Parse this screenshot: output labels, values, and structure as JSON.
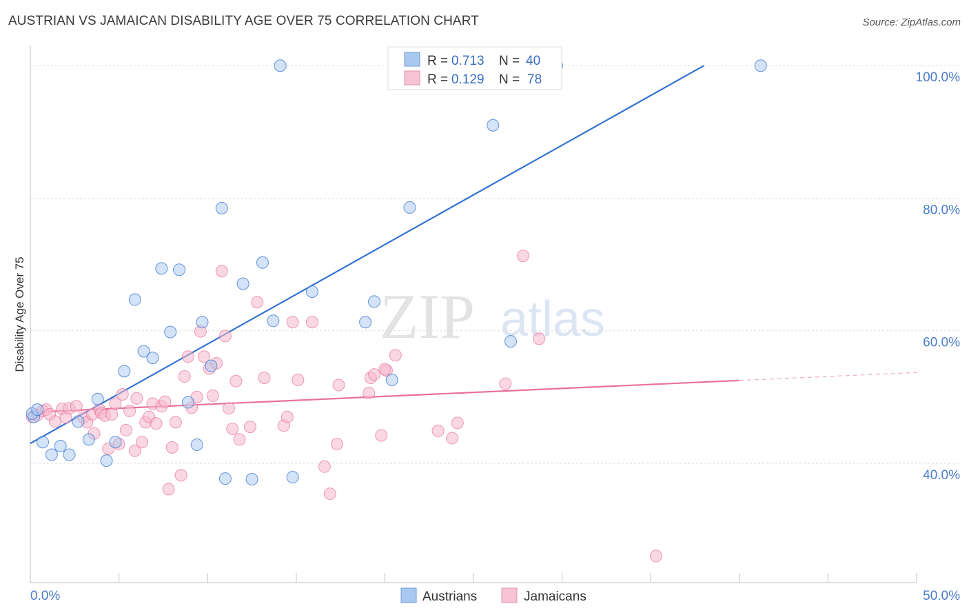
{
  "title": "AUSTRIAN VS JAMAICAN DISABILITY AGE OVER 75 CORRELATION CHART",
  "source": "Source: ZipAtlas.com",
  "watermark": {
    "zip": "ZIP",
    "atlas": "atlas"
  },
  "legend_stats": [
    {
      "r_label": "R =",
      "r_value": "0.713",
      "n_label": "N =",
      "n_value": "40"
    },
    {
      "r_label": "R =",
      "r_value": "0.129",
      "n_label": "N =",
      "n_value": "78"
    }
  ],
  "chart_data": {
    "type": "scatter",
    "title": "AUSTRIAN VS JAMAICAN DISABILITY AGE OVER 75 CORRELATION CHART",
    "xlabel": "",
    "ylabel": "Disability Age Over 75",
    "xlim": [
      0,
      50
    ],
    "ylim": [
      22,
      102
    ],
    "x_tick_labels": [
      "0.0%",
      "50.0%"
    ],
    "y_ticks": [
      40,
      60,
      80,
      100
    ],
    "y_tick_labels": [
      "40.0%",
      "60.0%",
      "80.0%",
      "100.0%"
    ],
    "grid": true,
    "legend_position": "bottom",
    "colors": {
      "austrians": "#3373d1",
      "jamaicans": "#e8709b",
      "austrians_fill": "#a9c8ef",
      "jamaicans_fill": "#f5b8cc"
    },
    "series": [
      {
        "name": "Austrians",
        "trend": {
          "x": [
            0,
            38
          ],
          "y": [
            43.0,
            100.0
          ]
        },
        "points": [
          [
            0.2,
            47.0
          ],
          [
            0.7,
            43.2
          ],
          [
            1.2,
            41.3
          ],
          [
            1.7,
            42.6
          ],
          [
            2.2,
            41.3
          ],
          [
            2.7,
            46.3
          ],
          [
            3.3,
            43.6
          ],
          [
            3.8,
            49.7
          ],
          [
            4.3,
            40.4
          ],
          [
            4.8,
            43.2
          ],
          [
            5.3,
            53.9
          ],
          [
            5.9,
            64.7
          ],
          [
            6.4,
            56.9
          ],
          [
            6.9,
            55.9
          ],
          [
            7.4,
            69.4
          ],
          [
            7.9,
            59.8
          ],
          [
            8.4,
            69.2
          ],
          [
            8.9,
            49.2
          ],
          [
            9.4,
            42.8
          ],
          [
            9.7,
            61.3
          ],
          [
            10.2,
            54.7
          ],
          [
            10.8,
            78.5
          ],
          [
            11.0,
            37.7
          ],
          [
            12.0,
            67.1
          ],
          [
            12.5,
            37.6
          ],
          [
            13.1,
            70.3
          ],
          [
            13.7,
            61.5
          ],
          [
            14.1,
            100.0
          ],
          [
            14.8,
            37.9
          ],
          [
            15.9,
            65.9
          ],
          [
            18.9,
            61.3
          ],
          [
            19.4,
            64.4
          ],
          [
            20.4,
            52.6
          ],
          [
            21.4,
            78.6
          ],
          [
            26.1,
            91.0
          ],
          [
            27.1,
            58.4
          ],
          [
            29.7,
            100.0
          ],
          [
            41.2,
            100.0
          ],
          [
            0.1,
            47.5
          ],
          [
            0.4,
            48.1
          ]
        ]
      },
      {
        "name": "Jamaicans",
        "trend": {
          "x": [
            0,
            40
          ],
          "y": [
            47.7,
            52.5
          ]
        },
        "trend_dashed": {
          "x": [
            40,
            50
          ],
          "y": [
            52.5,
            53.7
          ]
        },
        "points": [
          [
            0.1,
            47.0
          ],
          [
            0.4,
            47.3
          ],
          [
            0.7,
            47.9
          ],
          [
            0.9,
            48.1
          ],
          [
            1.1,
            47.4
          ],
          [
            1.4,
            46.3
          ],
          [
            1.8,
            48.2
          ],
          [
            2.0,
            46.9
          ],
          [
            2.2,
            48.3
          ],
          [
            2.6,
            48.6
          ],
          [
            3.0,
            46.9
          ],
          [
            3.2,
            46.2
          ],
          [
            3.5,
            47.4
          ],
          [
            3.6,
            44.5
          ],
          [
            3.9,
            48.1
          ],
          [
            4.0,
            47.6
          ],
          [
            4.2,
            47.2
          ],
          [
            4.4,
            42.2
          ],
          [
            4.6,
            47.4
          ],
          [
            4.8,
            49.0
          ],
          [
            5.0,
            42.9
          ],
          [
            5.2,
            50.4
          ],
          [
            5.4,
            45.0
          ],
          [
            5.6,
            47.9
          ],
          [
            5.9,
            41.9
          ],
          [
            6.0,
            49.8
          ],
          [
            6.3,
            43.2
          ],
          [
            6.5,
            46.2
          ],
          [
            6.7,
            47.0
          ],
          [
            6.9,
            49.0
          ],
          [
            7.1,
            46.0
          ],
          [
            7.4,
            48.6
          ],
          [
            7.6,
            49.3
          ],
          [
            7.8,
            36.1
          ],
          [
            8.0,
            42.4
          ],
          [
            8.2,
            46.2
          ],
          [
            8.5,
            38.2
          ],
          [
            8.7,
            53.1
          ],
          [
            8.9,
            56.1
          ],
          [
            9.1,
            48.4
          ],
          [
            9.4,
            50.0
          ],
          [
            9.6,
            59.9
          ],
          [
            9.8,
            56.1
          ],
          [
            10.1,
            54.3
          ],
          [
            10.3,
            50.2
          ],
          [
            10.5,
            55.1
          ],
          [
            10.8,
            69.0
          ],
          [
            11.0,
            59.2
          ],
          [
            11.2,
            48.3
          ],
          [
            11.4,
            45.2
          ],
          [
            11.6,
            52.4
          ],
          [
            11.8,
            43.6
          ],
          [
            12.4,
            45.5
          ],
          [
            12.8,
            64.3
          ],
          [
            13.2,
            52.9
          ],
          [
            14.3,
            45.7
          ],
          [
            14.5,
            47.0
          ],
          [
            14.8,
            61.3
          ],
          [
            15.1,
            52.6
          ],
          [
            15.9,
            61.3
          ],
          [
            16.6,
            39.5
          ],
          [
            16.9,
            35.4
          ],
          [
            17.3,
            42.9
          ],
          [
            17.4,
            51.8
          ],
          [
            19.1,
            50.6
          ],
          [
            19.2,
            52.9
          ],
          [
            19.4,
            53.4
          ],
          [
            19.8,
            44.2
          ],
          [
            20.1,
            54.0
          ],
          [
            20.6,
            56.3
          ],
          [
            23.0,
            44.9
          ],
          [
            23.8,
            43.8
          ],
          [
            24.1,
            46.1
          ],
          [
            26.8,
            52.0
          ],
          [
            27.8,
            71.3
          ],
          [
            28.7,
            58.8
          ],
          [
            35.3,
            26.0
          ],
          [
            20.0,
            54.2
          ]
        ]
      }
    ]
  }
}
